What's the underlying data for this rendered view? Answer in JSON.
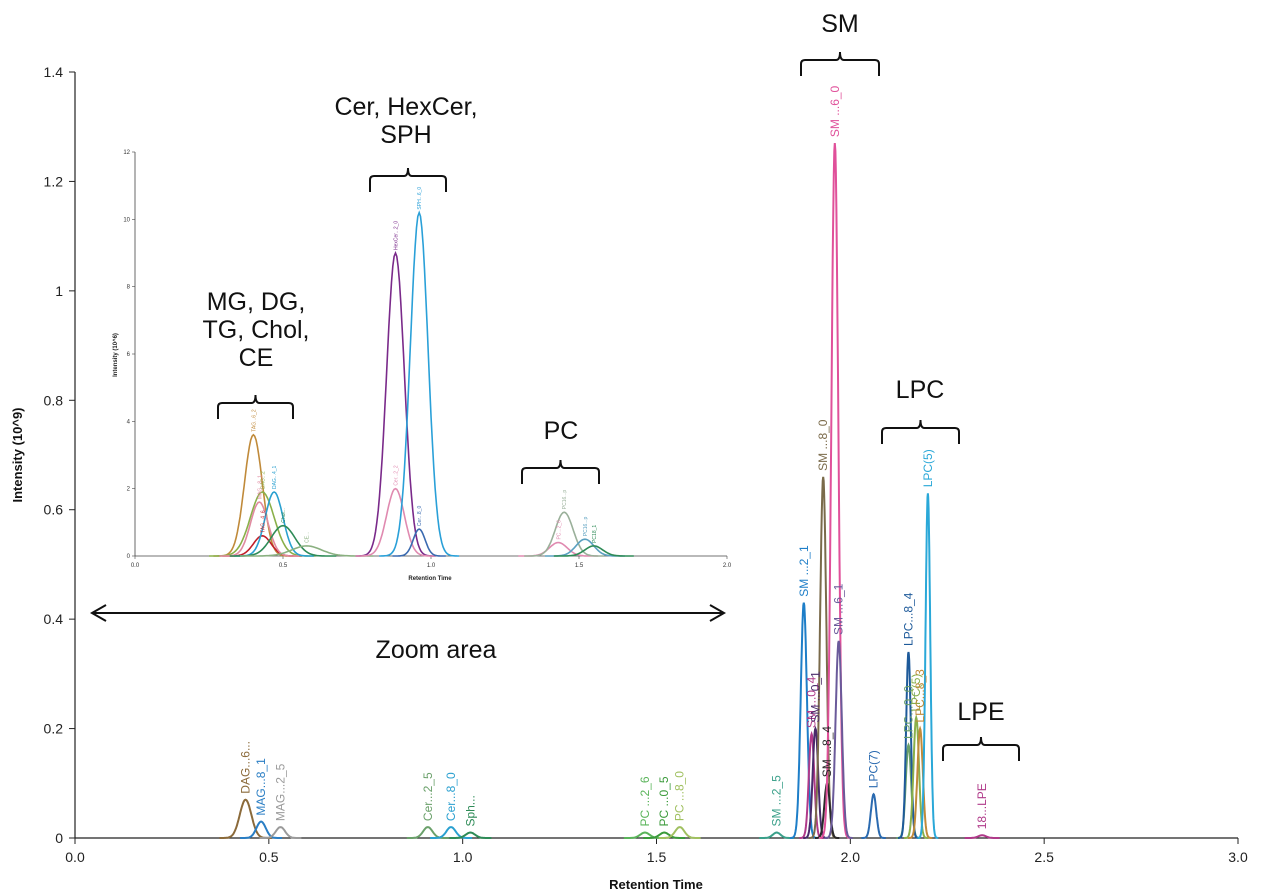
{
  "chart_data": {
    "type": "line",
    "xlabel": "Retention Time",
    "ylabel": "Intensity (10^9)",
    "xlim": [
      0,
      3.0
    ],
    "ylim": [
      0,
      1.4
    ],
    "xticks": [
      "0.0",
      "0.5",
      "1.0",
      "1.5",
      "2.0",
      "2.5",
      "3.0"
    ],
    "yticks": [
      "0",
      "0.2",
      "0.4",
      "0.6",
      "0.8",
      "1",
      "1.2",
      "1.4"
    ],
    "series": [
      {
        "label": "DAG...6...",
        "color": "#8b6a3a",
        "center": 0.44,
        "height": 0.07,
        "width": 0.015
      },
      {
        "label": "MAG...8_1",
        "color": "#2a7ec4",
        "center": 0.48,
        "height": 0.03,
        "width": 0.012
      },
      {
        "label": "MAG...2_5",
        "color": "#9a9a9a",
        "center": 0.53,
        "height": 0.02,
        "width": 0.012
      },
      {
        "label": "Cer...2_5",
        "color": "#6aa06a",
        "center": 0.91,
        "height": 0.02,
        "width": 0.012
      },
      {
        "label": "Cer...8_0",
        "color": "#2aa0d0",
        "center": 0.97,
        "height": 0.02,
        "width": 0.012
      },
      {
        "label": "Sph...",
        "color": "#2e8b57",
        "center": 1.02,
        "height": 0.01,
        "width": 0.012
      },
      {
        "label": "PC ...2_6",
        "color": "#5ab45a",
        "center": 1.47,
        "height": 0.01,
        "width": 0.012
      },
      {
        "label": "PC ...0_5",
        "color": "#3a9a3a",
        "center": 1.52,
        "height": 0.01,
        "width": 0.012
      },
      {
        "label": "PC ...8_0",
        "color": "#a0c060",
        "center": 1.56,
        "height": 0.02,
        "width": 0.012
      },
      {
        "label": "SM ...2_5",
        "color": "#3aa08a",
        "center": 1.81,
        "height": 0.01,
        "width": 0.01
      },
      {
        "label": "SM ...2_1",
        "color": "#1e7ec8",
        "center": 1.88,
        "height": 0.43,
        "width": 0.008
      },
      {
        "label": "SM ...0_4",
        "color": "#b03a8a",
        "center": 1.9,
        "height": 0.19,
        "width": 0.007
      },
      {
        "label": "SM ...0_1",
        "color": "#4a2a6a",
        "center": 1.91,
        "height": 0.2,
        "width": 0.007
      },
      {
        "label": "SM ...8_0",
        "color": "#7a6a4a",
        "center": 1.93,
        "height": 0.66,
        "width": 0.008
      },
      {
        "label": "SM ...8_4",
        "color": "#2a2a2a",
        "center": 1.94,
        "height": 0.1,
        "width": 0.007
      },
      {
        "label": "SM ...6_0",
        "color": "#e0509a",
        "center": 1.96,
        "height": 1.27,
        "width": 0.009
      },
      {
        "label": "SM ...6_1",
        "color": "#6a5a9a",
        "center": 1.97,
        "height": 0.36,
        "width": 0.008
      },
      {
        "label": "LPC(7)",
        "color": "#2a6ab0",
        "center": 2.06,
        "height": 0.08,
        "width": 0.007
      },
      {
        "label": "LPC...0_0",
        "color": "#6aa06a",
        "center": 2.15,
        "height": 0.17,
        "width": 0.007
      },
      {
        "label": "LPC...8_4",
        "color": "#1e5a9a",
        "center": 2.15,
        "height": 0.34,
        "width": 0.006
      },
      {
        "label": "LPC(5)",
        "color": "#8ab04a",
        "center": 2.17,
        "height": 0.22,
        "width": 0.007
      },
      {
        "label": "LPC...8_3",
        "color": "#c08a3a",
        "center": 2.18,
        "height": 0.2,
        "width": 0.007
      },
      {
        "label": "LPC(5)",
        "color": "#2aa8d8",
        "center": 2.2,
        "height": 0.63,
        "width": 0.006
      },
      {
        "label": "18...LPE",
        "color": "#b03a8a",
        "center": 2.34,
        "height": 0.005,
        "width": 0.01
      }
    ],
    "annotations": {
      "groups": [
        {
          "label": "SM"
        },
        {
          "label": "LPC"
        },
        {
          "label": "LPE"
        },
        {
          "label": "Cer, HexCer,\nSPH"
        },
        {
          "label": "MG, DG,\nTG, Chol,\nCE"
        },
        {
          "label": "PC"
        }
      ],
      "zoom_label": "Zoom area"
    },
    "inset": {
      "xlabel": "Retention Time",
      "ylabel": "Intensity (10^6)",
      "xlim": [
        0,
        2.0
      ],
      "ylim": [
        0,
        12
      ],
      "xticks": [
        "0.0",
        "0.5",
        "1.0",
        "1.5",
        "2.0"
      ],
      "yticks": [
        "0",
        "2",
        "4",
        "6",
        "8",
        "10",
        "12"
      ],
      "series": [
        {
          "label": "TAG...6_2",
          "color": "#c08a3a",
          "center": 0.4,
          "height": 3.6,
          "width": 0.03
        },
        {
          "label": "TAG...4_6",
          "color": "#c0202a",
          "center": 0.43,
          "height": 0.6,
          "width": 0.03
        },
        {
          "label": "DAG...2",
          "color": "#8ab04a",
          "center": 0.43,
          "height": 1.9,
          "width": 0.04
        },
        {
          "label": "MAG...8_1",
          "color": "#e08aa0",
          "center": 0.42,
          "height": 1.6,
          "width": 0.03
        },
        {
          "label": "DAG...4_1",
          "color": "#2aa0d0",
          "center": 0.47,
          "height": 1.9,
          "width": 0.03
        },
        {
          "label": "Chol...",
          "color": "#2e8b57",
          "center": 0.5,
          "height": 0.9,
          "width": 0.04
        },
        {
          "label": "CE...",
          "color": "#8ab080",
          "center": 0.58,
          "height": 0.3,
          "width": 0.05
        },
        {
          "label": "HexCer...2_0",
          "color": "#7a2a8a",
          "center": 0.88,
          "height": 9.0,
          "width": 0.03
        },
        {
          "label": "Cer...2_2",
          "color": "#e08ab0",
          "center": 0.88,
          "height": 2.0,
          "width": 0.03
        },
        {
          "label": "SPH...6_0",
          "color": "#2aa0d8",
          "center": 0.96,
          "height": 10.2,
          "width": 0.03
        },
        {
          "label": "Cer...8_0",
          "color": "#3a6ab0",
          "center": 0.96,
          "height": 0.8,
          "width": 0.02
        },
        {
          "label": "PC...2_6",
          "color": "#e08ab0",
          "center": 1.43,
          "height": 0.4,
          "width": 0.03
        },
        {
          "label": "PC16...p",
          "color": "#9ab09a",
          "center": 1.45,
          "height": 1.3,
          "width": 0.03
        },
        {
          "label": "PC16...p",
          "color": "#5aa0c0",
          "center": 1.52,
          "height": 0.5,
          "width": 0.03
        },
        {
          "label": "PC18_1",
          "color": "#2e8b57",
          "center": 1.55,
          "height": 0.3,
          "width": 0.03
        }
      ]
    }
  }
}
